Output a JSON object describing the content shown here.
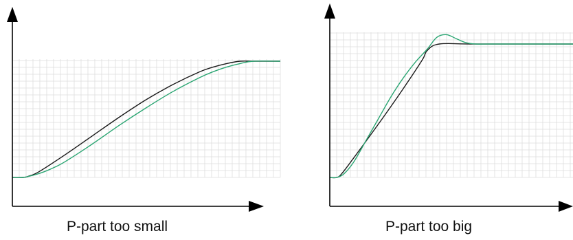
{
  "colors": {
    "setpoint": "#1a1a1a",
    "response": "#2aa572",
    "grid": "#dddddd",
    "axis": "#000000"
  },
  "chart_data": [
    {
      "type": "line",
      "title": "P-part too small",
      "xlabel": "",
      "ylabel": "",
      "xlim": [
        0,
        100
      ],
      "ylim": [
        0,
        1
      ],
      "grid": true,
      "axis_ticks": false,
      "series": [
        {
          "role": "setpoint",
          "color": "#1a1a1a",
          "x": [
            0,
            4,
            6,
            10,
            20,
            30,
            40,
            50,
            60,
            70,
            75,
            80,
            85,
            90,
            100
          ],
          "y": [
            0,
            0,
            0.01,
            0.05,
            0.2,
            0.36,
            0.52,
            0.67,
            0.8,
            0.91,
            0.95,
            0.98,
            1.0,
            1.0,
            1.0
          ]
        },
        {
          "role": "response",
          "color": "#2aa572",
          "x": [
            0,
            4,
            8,
            12,
            16,
            20,
            30,
            40,
            50,
            60,
            70,
            75,
            80,
            85,
            90,
            100
          ],
          "y": [
            0,
            0,
            0.02,
            0.05,
            0.09,
            0.14,
            0.29,
            0.45,
            0.6,
            0.74,
            0.86,
            0.91,
            0.95,
            0.98,
            1.0,
            1.0
          ]
        }
      ]
    },
    {
      "type": "line",
      "title": "P-part too big",
      "xlabel": "",
      "ylabel": "",
      "xlim": [
        0,
        100
      ],
      "ylim": [
        0,
        1.1
      ],
      "grid": true,
      "axis_ticks": false,
      "series": [
        {
          "role": "setpoint",
          "color": "#1a1a1a",
          "x": [
            0,
            3,
            5,
            10,
            20,
            30,
            38,
            40,
            45,
            60,
            100
          ],
          "y": [
            0,
            0,
            0.03,
            0.15,
            0.4,
            0.66,
            0.88,
            0.95,
            1.0,
            1.0,
            1.0
          ]
        },
        {
          "role": "response",
          "color": "#2aa572",
          "x": [
            0,
            3,
            6,
            10,
            15,
            20,
            25,
            30,
            35,
            40,
            44,
            48,
            52,
            56,
            60,
            65,
            70,
            100
          ],
          "y": [
            0,
            0,
            0.03,
            0.12,
            0.28,
            0.44,
            0.6,
            0.74,
            0.86,
            0.96,
            1.05,
            1.07,
            1.04,
            1.01,
            1.0,
            1.0,
            1.0,
            1.0
          ]
        }
      ]
    }
  ]
}
